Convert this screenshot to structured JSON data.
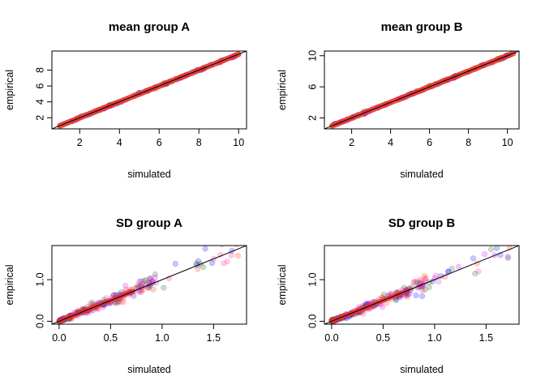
{
  "colors": {
    "identity_line": "#000000",
    "fit_line": "#e8352a",
    "points": [
      "#ff3300",
      "#ff2299",
      "#0000ff",
      "#cc00ff",
      "#1a5e1a"
    ]
  },
  "chart_data": [
    {
      "type": "scatter",
      "title": "mean group A",
      "xlabel": "simulated",
      "ylabel": "empirical",
      "xlim": [
        0.6,
        10.4
      ],
      "ylim": [
        0.6,
        10.4
      ],
      "xticks": [
        2,
        4,
        6,
        8,
        10
      ],
      "yticks": [
        2,
        4,
        6,
        8
      ],
      "x_tick_labels": [
        "2",
        "4",
        "6",
        "8",
        "10"
      ],
      "y_tick_labels": [
        "2",
        "4",
        "6",
        "8"
      ],
      "reference_line": "y = x",
      "points_summary": {
        "x_range": [
          1,
          10
        ],
        "relation": "empirical ≈ simulated"
      }
    },
    {
      "type": "scatter",
      "title": "mean group B",
      "xlabel": "simulated",
      "ylabel": "empirical",
      "xlim": [
        0.6,
        10.6
      ],
      "ylim": [
        0.6,
        10.6
      ],
      "xticks": [
        2,
        4,
        6,
        8,
        10
      ],
      "yticks": [
        2,
        6,
        10
      ],
      "x_tick_labels": [
        "2",
        "4",
        "6",
        "8",
        "10"
      ],
      "y_tick_labels": [
        "2",
        "6",
        "10"
      ],
      "reference_line": "y = x",
      "points_summary": {
        "x_range": [
          1,
          10.3
        ],
        "relation": "empirical ≈ simulated"
      }
    },
    {
      "type": "scatter",
      "title": "SD group A",
      "xlabel": "simulated",
      "ylabel": "empirical",
      "xlim": [
        -0.07,
        1.82
      ],
      "ylim": [
        -0.07,
        1.82
      ],
      "xticks": [
        0,
        0.5,
        1,
        1.5
      ],
      "yticks": [
        0,
        1
      ],
      "x_tick_labels": [
        "0.0",
        "0.5",
        "1.0",
        "1.5"
      ],
      "y_tick_labels": [
        "0.0",
        "1.0"
      ],
      "reference_line": "y = x",
      "points_summary": {
        "x_range": [
          0,
          1.75
        ],
        "relation": "empirical ≈ simulated, spread grows with x"
      }
    },
    {
      "type": "scatter",
      "title": "SD group B",
      "xlabel": "simulated",
      "ylabel": "empirical",
      "xlim": [
        -0.07,
        1.82
      ],
      "ylim": [
        -0.07,
        1.82
      ],
      "xticks": [
        0,
        0.5,
        1,
        1.5
      ],
      "yticks": [
        0,
        1
      ],
      "x_tick_labels": [
        "0.0",
        "0.5",
        "1.0",
        "1.5"
      ],
      "y_tick_labels": [
        "0.0",
        "1.0"
      ],
      "reference_line": "y = x",
      "points_summary": {
        "x_range": [
          0,
          1.75
        ],
        "relation": "empirical ≈ simulated, spread grows with x"
      }
    }
  ]
}
